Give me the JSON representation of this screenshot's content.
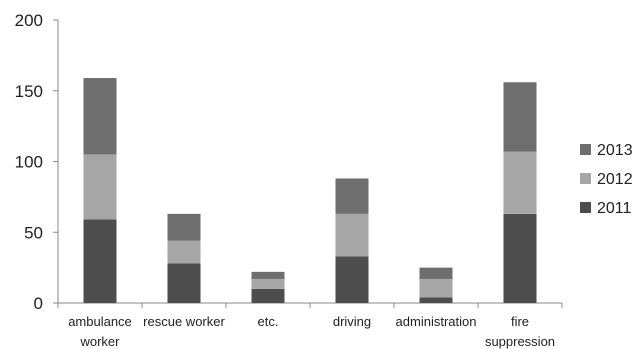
{
  "chart_data": {
    "type": "bar",
    "stacked": true,
    "categories": [
      [
        "ambulance",
        "worker"
      ],
      [
        "rescue worker"
      ],
      [
        "etc."
      ],
      [
        "driving"
      ],
      [
        "administration"
      ],
      [
        "fire",
        "suppression"
      ]
    ],
    "series": [
      {
        "name": "2011",
        "color": "#4d4d4d",
        "values": [
          59,
          28,
          10,
          33,
          4,
          63
        ]
      },
      {
        "name": "2012",
        "color": "#a6a6a6",
        "values": [
          46,
          16,
          7,
          30,
          13,
          44
        ]
      },
      {
        "name": "2013",
        "color": "#6e6e6e",
        "values": [
          54,
          19,
          5,
          25,
          8,
          49
        ]
      }
    ],
    "ylim": [
      0,
      200
    ],
    "yticks": [
      0,
      50,
      100,
      150,
      200
    ],
    "grid": false,
    "legend": "right",
    "legend_order": [
      "2013",
      "2012",
      "2011"
    ]
  }
}
